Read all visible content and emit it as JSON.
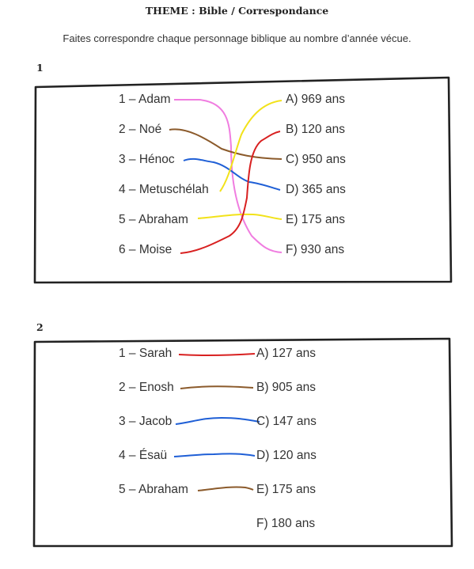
{
  "title": "THEME : Bible / Correspondance",
  "instruction": "Faites correspondre chaque personnage biblique au nombre d’année vécue.",
  "section1": {
    "number": "1",
    "left": [
      "1 – Adam",
      "2 – Noé",
      "3 – Hénoc",
      "4 – Metuschélah",
      "5 – Abraham",
      "6 – Moise"
    ],
    "right": [
      "A) 969 ans",
      "B) 120 ans",
      "C) 950 ans",
      "D) 365 ans",
      "E) 175 ans",
      "F) 930 ans"
    ],
    "matches": [
      {
        "from": 1,
        "to": "F",
        "color": "#f07de0"
      },
      {
        "from": 2,
        "to": "C",
        "color": "#8b5a2b"
      },
      {
        "from": 3,
        "to": "D",
        "color": "#1f5fd6"
      },
      {
        "from": 4,
        "to": "A",
        "color": "#f2e21a"
      },
      {
        "from": 5,
        "to": "E",
        "color": "#f2e21a"
      },
      {
        "from": 6,
        "to": "B",
        "color": "#d82020"
      }
    ]
  },
  "section2": {
    "number": "2",
    "left": [
      "1 – Sarah",
      "2 – Enosh",
      "3 – Jacob",
      "4 – Ésaü",
      "5 – Abraham"
    ],
    "right": [
      "A) 127 ans",
      "B) 905 ans",
      "C) 147 ans",
      "D) 120 ans",
      "E) 175 ans",
      "F) 180 ans"
    ],
    "matches": [
      {
        "from": 1,
        "to": "A",
        "color": "#d82020"
      },
      {
        "from": 2,
        "to": "B",
        "color": "#8b5a2b"
      },
      {
        "from": 3,
        "to": "C",
        "color": "#1f5fd6"
      },
      {
        "from": 4,
        "to": "D",
        "color": "#1f5fd6"
      },
      {
        "from": 5,
        "to": "E",
        "color": "#8b5a2b"
      }
    ]
  }
}
